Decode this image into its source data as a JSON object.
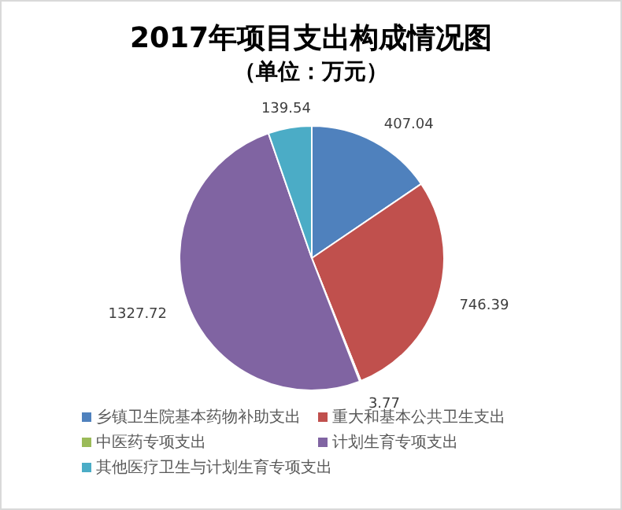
{
  "chart_data": {
    "type": "pie",
    "title": "2017年项目支出构成情况图",
    "subtitle": "（单位：万元）",
    "categories": [
      "乡镇卫生院基本药物补助支出",
      "重大和基本公共卫生支出",
      "中医药专项支出",
      "计划生育专项支出",
      "其他医疗卫生与计划生育专项支出"
    ],
    "values": [
      407.04,
      746.39,
      3.77,
      1327.72,
      139.54
    ],
    "colors": [
      "#4f81bd",
      "#c0504d",
      "#9bbb59",
      "#8064a2",
      "#4bacc6"
    ],
    "data_labels": true,
    "legend": "bottom"
  }
}
